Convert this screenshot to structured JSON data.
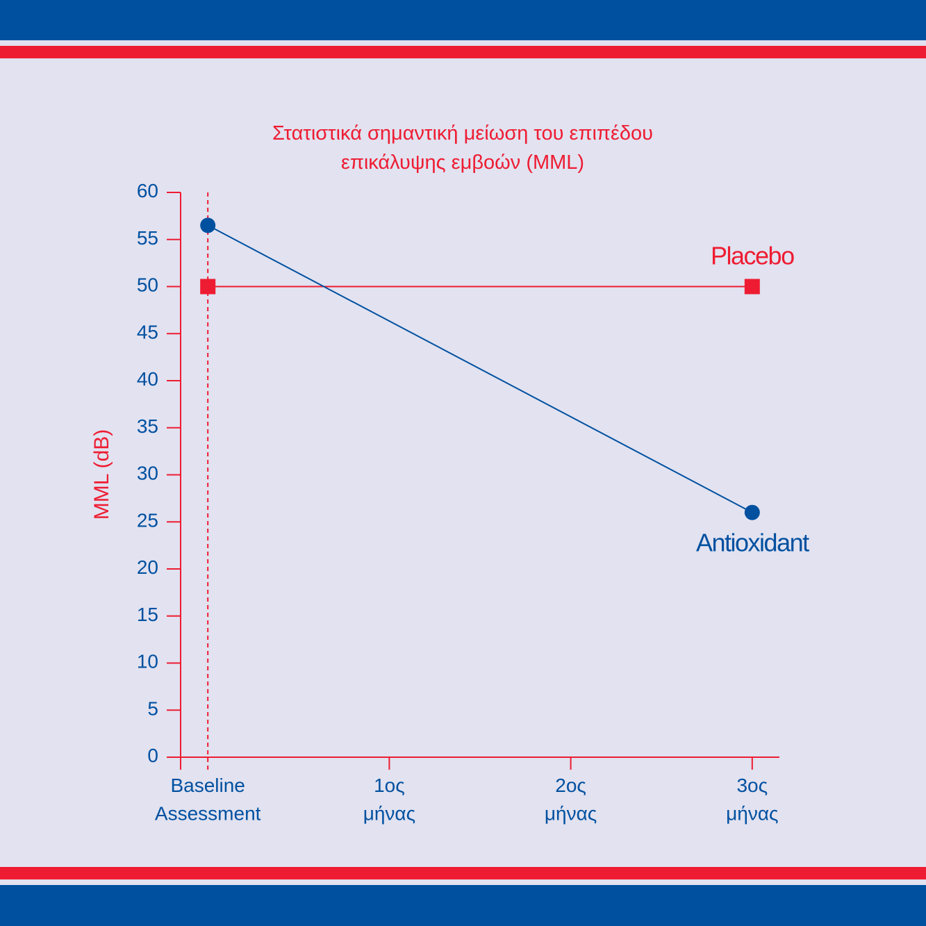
{
  "chart_data": {
    "type": "line",
    "title": "Στατιστικά σημαντική μείωση του επιπέδου\nεπικάλυψης εμβοών (MML)",
    "y_label": "MML (dB)",
    "xlim": [
      -0.15,
      3.15
    ],
    "xticks": [
      {
        "value": 0,
        "label": "Baseline\nAssessment"
      },
      {
        "value": 1,
        "label": "1ος\nμήνας"
      },
      {
        "value": 2,
        "label": "2ος\nμήνας"
      },
      {
        "value": 3,
        "label": "3ος\nμήνας"
      }
    ],
    "ylim": [
      0,
      60
    ],
    "yticks": [
      0,
      5,
      10,
      15,
      20,
      25,
      30,
      35,
      40,
      45,
      50,
      55,
      60
    ],
    "series": [
      {
        "name": "Placebo",
        "color": "#ee1c32",
        "marker": "square",
        "x": [
          0,
          3
        ],
        "values": [
          50,
          50
        ]
      },
      {
        "name": "Antioxidant",
        "color": "#0050a0",
        "marker": "circle",
        "x": [
          0,
          3
        ],
        "values": [
          56.5,
          26
        ]
      }
    ]
  }
}
